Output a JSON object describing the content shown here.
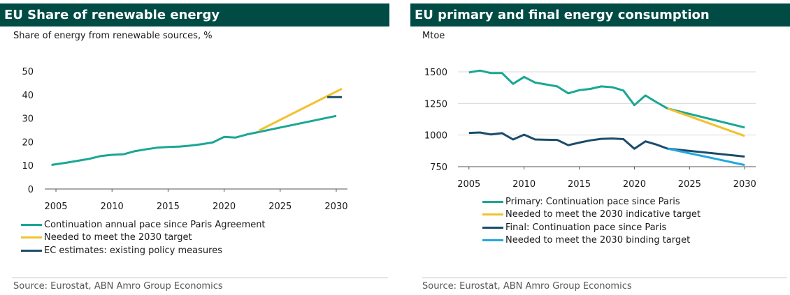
{
  "panels": [
    {
      "title": "EU Share of renewable energy",
      "subtitle": "Share of energy from renewable sources, %",
      "source": "Source: Eurostat, ABN Amro Group Economics"
    },
    {
      "title": "EU primary and final energy consumption",
      "subtitle": "Mtoe",
      "source": "Source:  Eurostat, ABN Amro Group Economics"
    }
  ],
  "chart_data": [
    {
      "type": "line",
      "title": "EU Share of renewable energy",
      "ylabel": "Share of energy from renewable sources, %",
      "xlim": [
        2004,
        2031
      ],
      "ylim": [
        0,
        50
      ],
      "xticks": [
        "2005",
        "2010",
        "2015",
        "2020",
        "2025",
        "2030"
      ],
      "yticks": [
        "0",
        "10",
        "20",
        "30",
        "40",
        "50"
      ],
      "grid": false,
      "legend_position": "bottom",
      "series": [
        {
          "name": "Continuation annual pace since Paris Agreement",
          "color": "#1aa794",
          "x": [
            2004.6,
            2005,
            2006,
            2007,
            2008,
            2009,
            2010,
            2011,
            2012,
            2013,
            2014,
            2015,
            2016,
            2017,
            2018,
            2019,
            2020,
            2021,
            2022,
            2030
          ],
          "y": [
            10.2,
            10.5,
            11.2,
            12,
            12.8,
            14,
            14.5,
            14.7,
            16,
            16.8,
            17.5,
            17.8,
            18,
            18.4,
            19,
            19.8,
            22.1,
            21.8,
            23.1,
            31
          ]
        },
        {
          "name": "Needed to meet the 2030 target",
          "color": "#f2c12e",
          "x": [
            2023.1,
            2030.5
          ],
          "y": [
            24.8,
            42.5
          ]
        },
        {
          "name": "EC estimates: existing policy measures",
          "color": "#1b4c6b",
          "x": [
            2029.2,
            2030.5
          ],
          "y": [
            39,
            39
          ]
        }
      ]
    },
    {
      "type": "line",
      "title": "EU primary and final energy consumption",
      "ylabel": "Mtoe",
      "xlim": [
        2004,
        2031
      ],
      "ylim": [
        750,
        1500
      ],
      "xticks": [
        "2005",
        "2010",
        "2015",
        "2020",
        "2025",
        "2030"
      ],
      "yticks": [
        "750",
        "1000",
        "1250",
        "1500"
      ],
      "grid": true,
      "legend_position": "bottom",
      "series": [
        {
          "name": "Primary: Continuation pace since Paris",
          "color": "#1aa794",
          "x": [
            2005,
            2006,
            2007,
            2008,
            2009,
            2010,
            2011,
            2012,
            2013,
            2014,
            2015,
            2016,
            2017,
            2018,
            2019,
            2020,
            2021,
            2022,
            2023,
            2030
          ],
          "y": [
            1495,
            1510,
            1490,
            1490,
            1405,
            1460,
            1415,
            1400,
            1385,
            1330,
            1355,
            1365,
            1385,
            1378,
            1352,
            1237,
            1313,
            1260,
            1210,
            1060
          ]
        },
        {
          "name": "Needed to meet the 2030 indicative target",
          "color": "#f2c12e",
          "x": [
            2023,
            2030
          ],
          "y": [
            1210,
            993
          ]
        },
        {
          "name": "Final: Continuation pace since Paris",
          "color": "#1b4c6b",
          "x": [
            2005,
            2006,
            2007,
            2008,
            2009,
            2010,
            2011,
            2012,
            2013,
            2014,
            2015,
            2016,
            2017,
            2018,
            2019,
            2020,
            2021,
            2022,
            2023,
            2030
          ],
          "y": [
            1017,
            1020,
            1005,
            1015,
            965,
            1003,
            965,
            963,
            962,
            920,
            940,
            958,
            970,
            973,
            968,
            892,
            950,
            925,
            893,
            830
          ]
        },
        {
          "name": "Needed to meet the 2030 binding target",
          "color": "#23a8df",
          "x": [
            2023,
            2030
          ],
          "y": [
            893,
            763
          ]
        }
      ]
    }
  ]
}
